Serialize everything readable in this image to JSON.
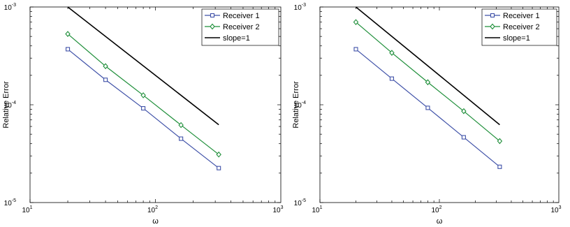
{
  "chart_data": [
    {
      "type": "line",
      "xlabel": "ω",
      "ylabel": "Relative Error",
      "xscale": "log",
      "yscale": "log",
      "xlim": [
        10,
        1000
      ],
      "ylim": [
        1e-05,
        0.001
      ],
      "x_ticks": [
        {
          "base": "10",
          "exp": "1"
        },
        {
          "base": "10",
          "exp": "2"
        },
        {
          "base": "10",
          "exp": "3"
        }
      ],
      "y_ticks": [
        {
          "base": "10",
          "exp": "-5"
        },
        {
          "base": "10",
          "exp": "-4"
        },
        {
          "base": "10",
          "exp": "-3"
        }
      ],
      "grid": false,
      "legend_position": "top-right",
      "series": [
        {
          "name": "Receiver 1",
          "color": "#3f51a8",
          "marker": "square",
          "x": [
            20,
            40,
            80,
            160,
            320
          ],
          "y": [
            0.00037,
            0.00018,
            9.2e-05,
            4.5e-05,
            2.25e-05
          ]
        },
        {
          "name": "Receiver 2",
          "color": "#1f8f3a",
          "marker": "diamond",
          "x": [
            20,
            40,
            80,
            160,
            320
          ],
          "y": [
            0.00053,
            0.000248,
            0.000125,
            6.2e-05,
            3.1e-05
          ]
        },
        {
          "name": "slope=1",
          "color": "#000000",
          "marker": "none",
          "x": [
            20,
            320
          ],
          "y": [
            0.001,
            6.25e-05
          ]
        }
      ]
    },
    {
      "type": "line",
      "xlabel": "ω",
      "ylabel": "Relative Error",
      "xscale": "log",
      "yscale": "log",
      "xlim": [
        10,
        1000
      ],
      "ylim": [
        1e-05,
        0.001
      ],
      "x_ticks": [
        {
          "base": "10",
          "exp": "1"
        },
        {
          "base": "10",
          "exp": "2"
        },
        {
          "base": "10",
          "exp": "3"
        }
      ],
      "y_ticks": [
        {
          "base": "10",
          "exp": "-5"
        },
        {
          "base": "10",
          "exp": "-4"
        },
        {
          "base": "10",
          "exp": "-3"
        }
      ],
      "grid": false,
      "legend_position": "top-right",
      "series": [
        {
          "name": "Receiver 1",
          "color": "#3f51a8",
          "marker": "square",
          "x": [
            20,
            40,
            80,
            160,
            320
          ],
          "y": [
            0.00037,
            0.000185,
            9.3e-05,
            4.65e-05,
            2.32e-05
          ]
        },
        {
          "name": "Receiver 2",
          "color": "#1f8f3a",
          "marker": "diamond",
          "x": [
            20,
            40,
            80,
            160,
            320
          ],
          "y": [
            0.0007,
            0.00034,
            0.00017,
            8.6e-05,
            4.25e-05
          ]
        },
        {
          "name": "slope=1",
          "color": "#000000",
          "marker": "none",
          "x": [
            20,
            320
          ],
          "y": [
            0.001,
            6.25e-05
          ]
        }
      ]
    }
  ]
}
